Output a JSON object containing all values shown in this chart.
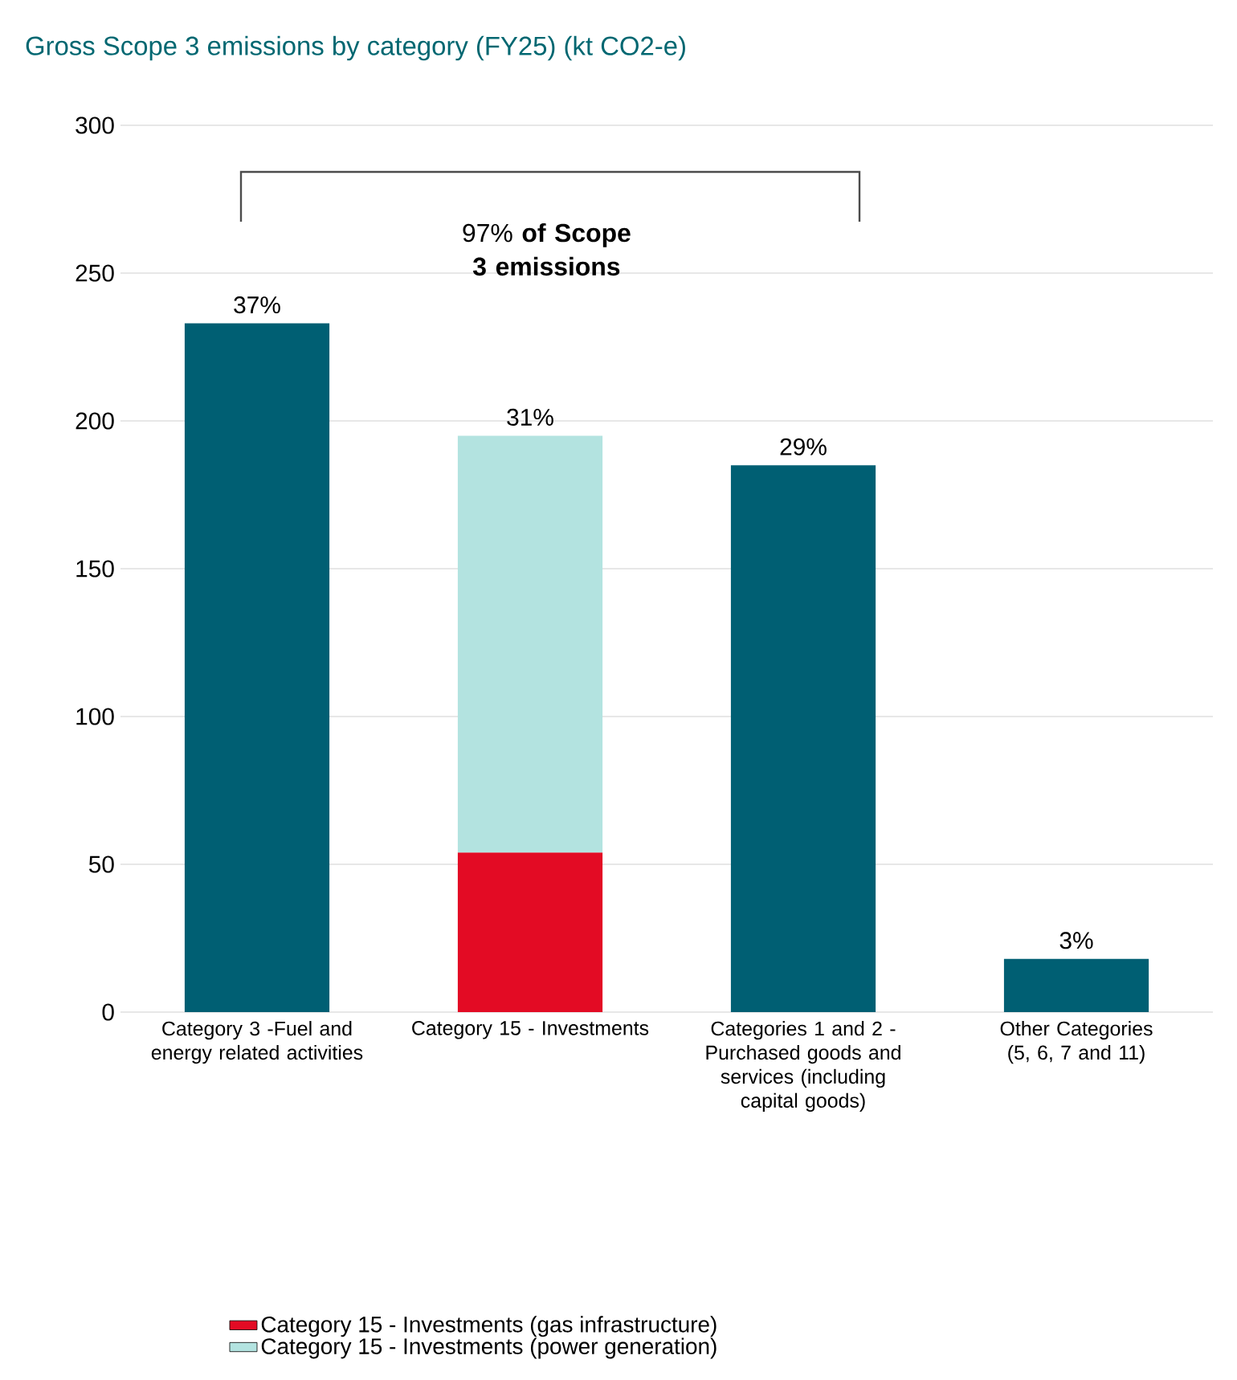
{
  "chart_data": {
    "type": "bar",
    "title": "Gross Scope 3 emissions by category (FY25) (kt CO2-e)",
    "categories": [
      "Category 3 -Fuel and energy related activities",
      "Category 15 - Investments",
      "Categories 1 and 2 - Purchased goods and services (including capital goods)",
      "Other Categories (5, 6, 7 and 11)"
    ],
    "series": [
      {
        "color": "#005f73",
        "values": [
          233,
          null,
          185,
          18
        ]
      },
      {
        "name": "Category 15 - Investments (gas infrastructure)",
        "color": "#e30b24",
        "values": [
          null,
          54,
          null,
          null
        ]
      },
      {
        "name": "Category 15 - Investments (power generation)",
        "color": "#b3e3e0",
        "values": [
          null,
          141,
          null,
          null
        ]
      }
    ],
    "stacked": true,
    "ylim": [
      0,
      300
    ],
    "yticks": [
      0,
      50,
      100,
      150,
      200,
      250,
      300
    ],
    "grid": "y",
    "legend": "bottom",
    "annotations": [
      "97% **of Scope 3 emissions**",
      {
        "text": "37%",
        "x": "Category 3 -Fuel and energy related activities",
        "y": 233
      },
      {
        "text": "31%",
        "x": "Category 15 - Investments",
        "y": 195
      },
      {
        "text": "29%",
        "x": "Categories 1 and 2 - Purchased goods and services (including capital goods)",
        "y": 185
      },
      {
        "text": "3%",
        "x": "Other Categories (5, 6, 7 and 11)",
        "y": 18
      }
    ]
  }
}
